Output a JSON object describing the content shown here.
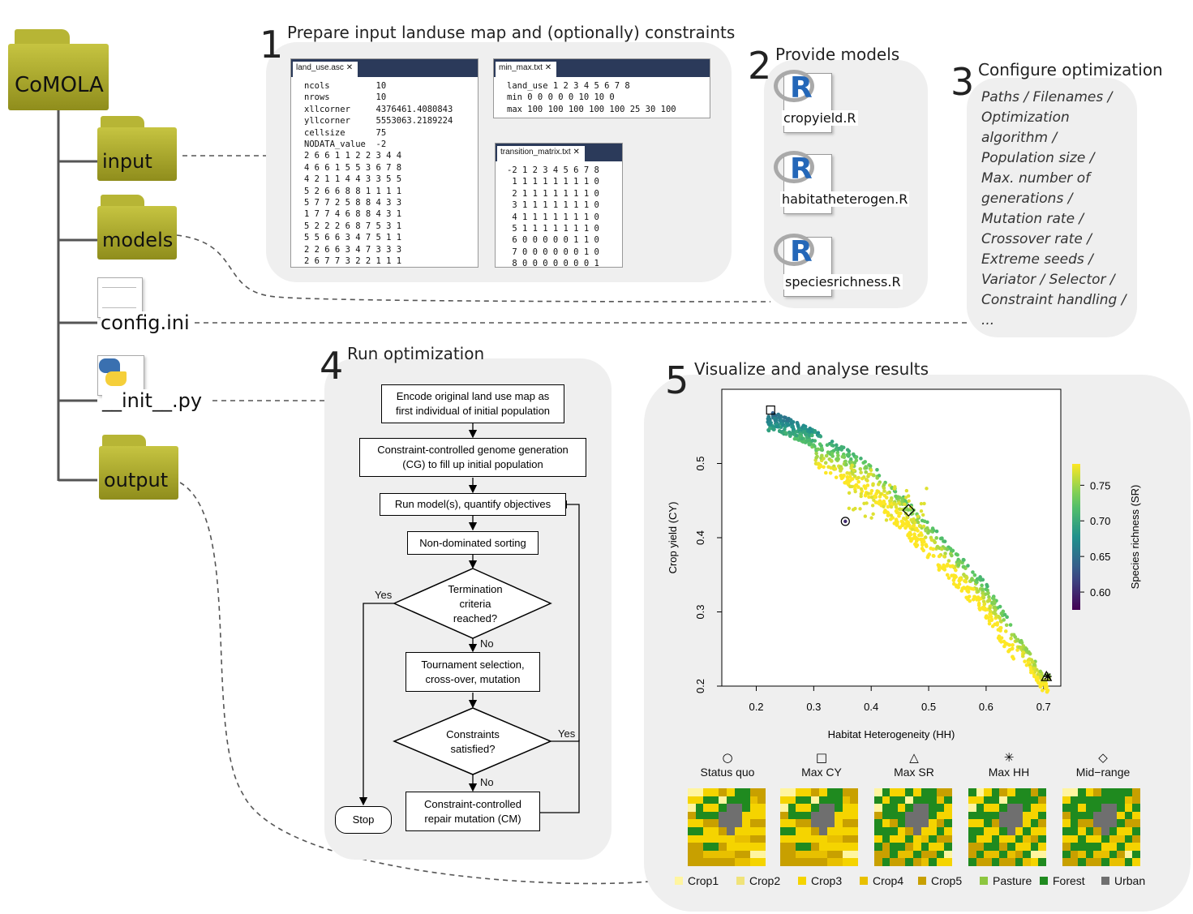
{
  "root_folder": "CoMOLA",
  "folders": [
    {
      "name": "input"
    },
    {
      "name": "models"
    },
    {
      "name": "config.ini"
    },
    {
      "name": "__init__.py"
    },
    {
      "name": "output"
    }
  ],
  "step1": {
    "number": "1",
    "title": "Prepare input landuse map and (optionally) constraints",
    "land_use_tab": "land_use.asc",
    "land_use_lines": [
      "ncols         10",
      "nrows         10",
      "xllcorner     4376461.4080843",
      "yllcorner     5553063.2189224",
      "cellsize      75",
      "NODATA_value  -2",
      "2 6 6 1 1 2 2 3 4 4",
      "4 6 6 1 5 5 3 6 7 8",
      "4 2 1 1 4 4 3 3 5 5",
      "5 2 6 6 8 8 1 1 1 1",
      "5 7 7 2 5 8 8 4 3 3",
      "1 7 7 4 6 8 8 4 3 1",
      "5 2 2 2 6 8 7 5 3 1",
      "5 5 6 6 3 4 7 5 1 1",
      "2 2 6 6 3 4 7 3 3 3",
      "2 6 7 7 3 2 2 1 1 1"
    ],
    "minmax_tab": "min_max.txt",
    "minmax_lines": [
      "land_use 1 2 3 4 5 6 7 8",
      "min 0 0 0 0 0 10 10 0",
      "max 100 100 100 100 100 25 30 100"
    ],
    "transition_tab": "transition_matrix.txt",
    "transition_lines": [
      "-2 1 2 3 4 5 6 7 8",
      " 1 1 1 1 1 1 1 1 0",
      " 2 1 1 1 1 1 1 1 0",
      " 3 1 1 1 1 1 1 1 0",
      " 4 1 1 1 1 1 1 1 0",
      " 5 1 1 1 1 1 1 1 0",
      " 6 0 0 0 0 0 1 1 0",
      " 7 0 0 0 0 0 0 1 0",
      " 8 0 0 0 0 0 0 0 1"
    ],
    "close_glyph": "✕"
  },
  "step2": {
    "number": "2",
    "title": "Provide models",
    "models": [
      "cropyield.R",
      "habitatheterogen.R",
      "speciesrichness.R"
    ],
    "r_letter": "R"
  },
  "step3": {
    "number": "3",
    "title": "Configure optimization",
    "lines": [
      "Paths / Filenames /",
      "Optimization",
      "algorithm /",
      "Population size /",
      "Max. number of",
      "generations /",
      "Mutation rate /",
      "Crossover rate /",
      "Extreme seeds /",
      "Variator / Selector /",
      "Constraint handling /",
      "..."
    ]
  },
  "step4": {
    "number": "4",
    "title": "Run optimization",
    "boxes": {
      "encode": [
        "Encode original land use map as",
        "first individual of initial population"
      ],
      "cg": [
        "Constraint-controlled genome generation",
        "(CG) to fill up initial population"
      ],
      "run": [
        "Run model(s), quantify objectives"
      ],
      "nds": [
        "Non-dominated sorting"
      ],
      "termination": [
        "Termination",
        "criteria",
        "reached?"
      ],
      "tournament": [
        "Tournament selection,",
        "cross-over, mutation"
      ],
      "constraints": [
        "Constraints",
        "satisfied?"
      ],
      "repair": [
        "Constraint-controlled",
        "repair mutation (CM)"
      ],
      "stop": [
        "Stop"
      ]
    },
    "labels": {
      "yes_term": "Yes",
      "no_term": "No",
      "yes_cons": "Yes",
      "no_cons": "No"
    }
  },
  "step5": {
    "number": "5",
    "title": "Visualize and analyse results",
    "legend": {
      "markers": [
        {
          "label": "Status quo",
          "symbol": "○"
        },
        {
          "label": "Max CY",
          "symbol": "□"
        },
        {
          "label": "Max SR",
          "symbol": "△"
        },
        {
          "label": "Max HH",
          "symbol": "✳"
        },
        {
          "label": "Mid−range",
          "symbol": "◇"
        }
      ],
      "landuse": [
        {
          "label": "Crop1",
          "color": "#fff5a0"
        },
        {
          "label": "Crop2",
          "color": "#f0e37a"
        },
        {
          "label": "Crop3",
          "color": "#f5d400"
        },
        {
          "label": "Crop4",
          "color": "#e8c000"
        },
        {
          "label": "Crop5",
          "color": "#c8a000"
        },
        {
          "label": "Pasture",
          "color": "#8dc63f"
        },
        {
          "label": "Forest",
          "color": "#1f8a1f"
        },
        {
          "label": "Urban",
          "color": "#6f6f6f"
        }
      ]
    }
  },
  "chart_data": {
    "type": "scatter",
    "title": "",
    "xlabel": "Habitat Heterogeneity (HH)",
    "ylabel": "Crop yield (CY)",
    "colorbar_label": "Species richness (SR)",
    "xlim": [
      0.14,
      0.73
    ],
    "ylim": [
      0.2,
      0.6
    ],
    "xticks": [
      "0.2",
      "0.3",
      "0.4",
      "0.5",
      "0.6",
      "0.7"
    ],
    "yticks": [
      "0.2",
      "0.3",
      "0.4",
      "0.5"
    ],
    "colorbar_ticks": [
      "0.60",
      "0.65",
      "0.70",
      "0.75"
    ],
    "colorbar_range": [
      0.575,
      0.78
    ],
    "pareto_front": [
      {
        "hh": 0.17,
        "cy": 0.557,
        "sr": 0.68
      },
      {
        "hh": 0.23,
        "cy": 0.57,
        "sr": 0.66
      },
      {
        "hh": 0.3,
        "cy": 0.545,
        "sr": 0.7
      },
      {
        "hh": 0.4,
        "cy": 0.5,
        "sr": 0.74
      },
      {
        "hh": 0.5,
        "cy": 0.42,
        "sr": 0.74
      },
      {
        "hh": 0.6,
        "cy": 0.34,
        "sr": 0.73
      },
      {
        "hh": 0.7,
        "cy": 0.215,
        "sr": 0.77
      }
    ],
    "special_points": [
      {
        "name": "Status quo",
        "hh": 0.355,
        "cy": 0.422,
        "sr": 0.6
      },
      {
        "name": "Max CY",
        "hh": 0.225,
        "cy": 0.572,
        "sr": 0.66
      },
      {
        "name": "Max SR",
        "hh": 0.705,
        "cy": 0.213,
        "sr": 0.78
      },
      {
        "name": "Max HH",
        "hh": 0.707,
        "cy": 0.213,
        "sr": 0.77
      },
      {
        "name": "Mid-range",
        "hh": 0.465,
        "cy": 0.437,
        "sr": 0.72
      }
    ]
  }
}
